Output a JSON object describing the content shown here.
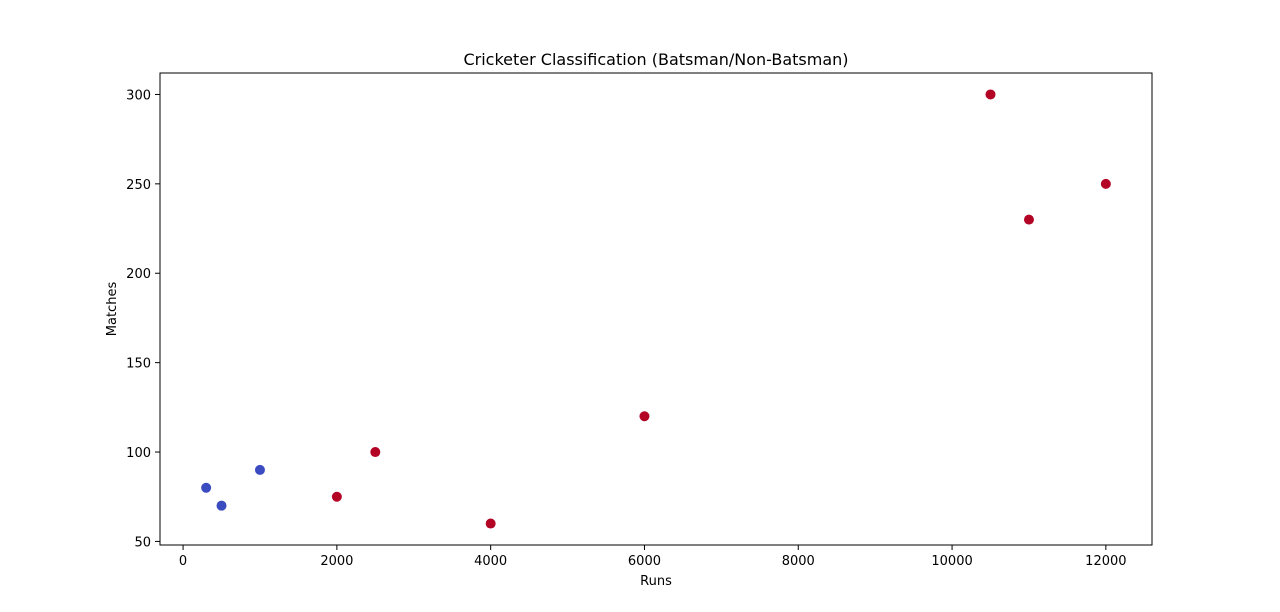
{
  "chart_data": {
    "type": "scatter",
    "title": "Cricketer Classification (Batsman/Non-Batsman)",
    "xlabel": "Runs",
    "ylabel": "Matches",
    "xlim": [
      -300,
      12600
    ],
    "ylim": [
      48,
      312
    ],
    "xticks": [
      0,
      2000,
      4000,
      6000,
      8000,
      10000,
      12000
    ],
    "yticks": [
      50,
      100,
      150,
      200,
      250,
      300
    ],
    "grid": false,
    "legend": "none",
    "colors": {
      "class_0": "#3b4cc0",
      "class_1": "#b40426"
    },
    "points": [
      {
        "x": 300,
        "y": 80,
        "class": 0
      },
      {
        "x": 500,
        "y": 70,
        "class": 0
      },
      {
        "x": 1000,
        "y": 90,
        "class": 0
      },
      {
        "x": 2000,
        "y": 75,
        "class": 1
      },
      {
        "x": 2500,
        "y": 100,
        "class": 1
      },
      {
        "x": 4000,
        "y": 60,
        "class": 1
      },
      {
        "x": 6000,
        "y": 120,
        "class": 1
      },
      {
        "x": 10500,
        "y": 300,
        "class": 1
      },
      {
        "x": 11000,
        "y": 230,
        "class": 1
      },
      {
        "x": 12000,
        "y": 250,
        "class": 1
      }
    ]
  }
}
